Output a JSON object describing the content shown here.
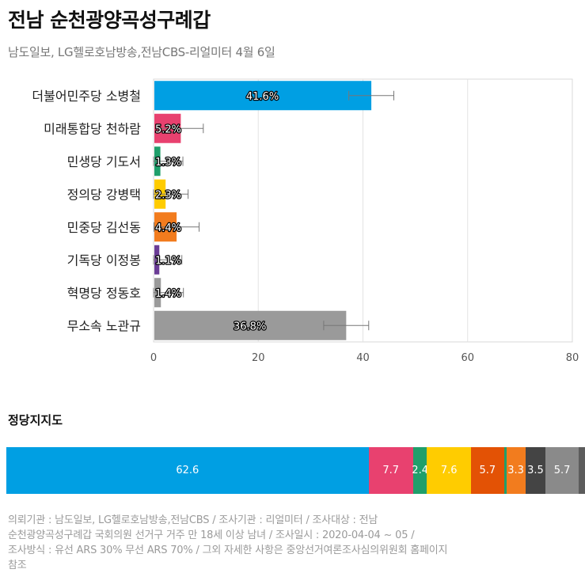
{
  "title": "전남 순천광양곡성구례갑",
  "subtitle": "남도일보, LG헬로호남방송,전남CBS-리얼미터 4월 6일",
  "chart_data": [
    {
      "type": "bar",
      "orientation": "horizontal",
      "categories": [
        "더불어민주당 소병철",
        "미래통합당 천하람",
        "민생당 기도서",
        "정의당 강병택",
        "민중당 김선동",
        "기독당 이정봉",
        "혁명당 정동호",
        "무소속 노관규"
      ],
      "values": [
        41.6,
        5.2,
        1.3,
        2.3,
        4.4,
        1.1,
        1.4,
        36.8
      ],
      "labels": [
        "41.6%",
        "5.2%",
        "1.3%",
        "2.3%",
        "4.4%",
        "1.1%",
        "1.4%",
        "36.8%"
      ],
      "error": [
        4.3,
        4.3,
        4.3,
        4.3,
        4.3,
        4.3,
        4.3,
        4.3
      ],
      "colors": [
        "#009fe3",
        "#e8416f",
        "#1f9f6b",
        "#ffcc00",
        "#f27c1e",
        "#6b3d96",
        "#9a9a9a",
        "#9a9a9a"
      ],
      "xlim": [
        0,
        80
      ],
      "xticks": [
        "0",
        "20",
        "40",
        "60",
        "80"
      ],
      "grid": true
    },
    {
      "type": "bar",
      "orientation": "stacked-horizontal",
      "title": "정당지지도",
      "values": [
        62.6,
        7.7,
        2.4,
        7.6,
        5.7,
        0.4,
        3.3,
        3.5,
        5.7,
        1.1
      ],
      "labels": [
        "62.6",
        "7.7",
        "2.4",
        "7.6",
        "5.7",
        "",
        "3.3",
        "3.5",
        "5.7",
        ""
      ],
      "colors": [
        "#009fe3",
        "#e8416f",
        "#1f9f6b",
        "#ffcc00",
        "#e35205",
        "#1f9f6b",
        "#f27c1e",
        "#444444",
        "#8a8a8a",
        "#5c5c5c"
      ]
    }
  ],
  "footer": [
    "의뢰기관 : 남도일보, LG헬로호남방송,전남CBS / 조사기관 : 리얼미터 / 조사대상 : 전남",
    "순천광양곡성구례갑 국회의원 선거구 거주 만 18세 이상 남녀 / 조사일시 : 2020-04-04 ~ 05 /",
    "조사방식 : 유선 ARS 30% 무선 ARS 70% / 그외 자세한 사항은 중앙선거여론조사심의위원회 홈페이지",
    "참조"
  ]
}
